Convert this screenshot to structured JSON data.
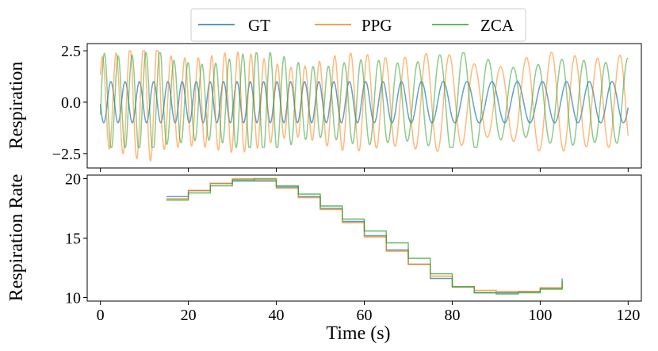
{
  "chart_data": [
    {
      "type": "line",
      "ylabel": "Respiration",
      "xlabel": "",
      "xlim": [
        -3,
        123
      ],
      "ylim": [
        -3.2,
        2.85
      ],
      "xticks": [
        0,
        20,
        40,
        60,
        80,
        100,
        120
      ],
      "xtick_labels_shown": false,
      "yticks": [
        2.5,
        0.0,
        -2.5
      ],
      "ytick_labels": [
        "2.5",
        "0.0",
        "−2.5"
      ],
      "series": [
        {
          "name": "GT",
          "color": "#1f77b4",
          "signal": "sinusoid",
          "amplitude": 1.0,
          "x_range": [
            0,
            120
          ],
          "rate_start_bpm": 18.5,
          "rate_peak_bpm": 20,
          "rate_end_bpm": 10.5
        },
        {
          "name": "PPG",
          "color": "#ff7f0e",
          "signal": "sinusoid",
          "amplitude_range": [
            1.3,
            2.6
          ],
          "x_range": [
            0,
            120
          ],
          "min_value": -3.0,
          "max_value": 2.5
        },
        {
          "name": "ZCA",
          "color": "#2ca02c",
          "signal": "sinusoid",
          "amplitude_range": [
            1.2,
            2.5
          ],
          "x_range": [
            0,
            120
          ],
          "min_value": -2.2,
          "max_value": 2.4
        }
      ]
    },
    {
      "type": "line",
      "ylabel": "Respiration Rate",
      "xlabel": "Time (s)",
      "xlim": [
        -3,
        123
      ],
      "ylim": [
        9.7,
        20.3
      ],
      "xticks": [
        0,
        20,
        40,
        60,
        80,
        100,
        120
      ],
      "xtick_labels": [
        "0",
        "20",
        "40",
        "60",
        "80",
        "100",
        "120"
      ],
      "yticks": [
        10,
        15,
        20
      ],
      "ytick_labels": [
        "10",
        "15",
        "20"
      ],
      "series": [
        {
          "name": "GT",
          "color": "#1f77b4",
          "style": "step",
          "x": [
            15,
            20,
            25,
            30,
            35,
            40,
            45,
            50,
            55,
            60,
            65,
            70,
            75,
            80,
            85,
            90,
            95,
            100,
            105
          ],
          "y": [
            18.5,
            19.0,
            19.6,
            19.8,
            19.8,
            19.3,
            18.5,
            17.5,
            16.4,
            15.2,
            14.0,
            12.8,
            11.6,
            10.9,
            10.4,
            10.4,
            10.5,
            10.8,
            11.6
          ]
        },
        {
          "name": "PPG",
          "color": "#ff7f0e",
          "style": "step",
          "x": [
            15,
            20,
            25,
            30,
            35,
            40,
            45,
            50,
            55,
            60,
            65,
            70,
            75,
            80,
            85,
            90,
            95,
            100,
            105
          ],
          "y": [
            18.3,
            19.0,
            19.6,
            20.0,
            19.9,
            19.2,
            18.4,
            17.4,
            16.3,
            15.1,
            13.9,
            12.8,
            11.8,
            10.9,
            10.6,
            10.5,
            10.5,
            10.8,
            11.3
          ]
        },
        {
          "name": "ZCA",
          "color": "#2ca02c",
          "style": "step",
          "x": [
            15,
            20,
            25,
            30,
            35,
            40,
            45,
            50,
            55,
            60,
            65,
            70,
            75,
            80,
            85,
            90,
            95,
            100,
            105
          ],
          "y": [
            18.2,
            18.8,
            19.4,
            19.9,
            20.0,
            19.4,
            18.7,
            17.7,
            16.6,
            15.6,
            14.6,
            13.3,
            12.0,
            10.9,
            10.4,
            10.3,
            10.4,
            10.7,
            11.4
          ]
        }
      ]
    }
  ],
  "legend": {
    "position": "top-center",
    "entries": [
      {
        "label": "GT",
        "color": "#1f77b4"
      },
      {
        "label": "PPG",
        "color": "#ff7f0e"
      },
      {
        "label": "ZCA",
        "color": "#2ca02c"
      }
    ]
  }
}
